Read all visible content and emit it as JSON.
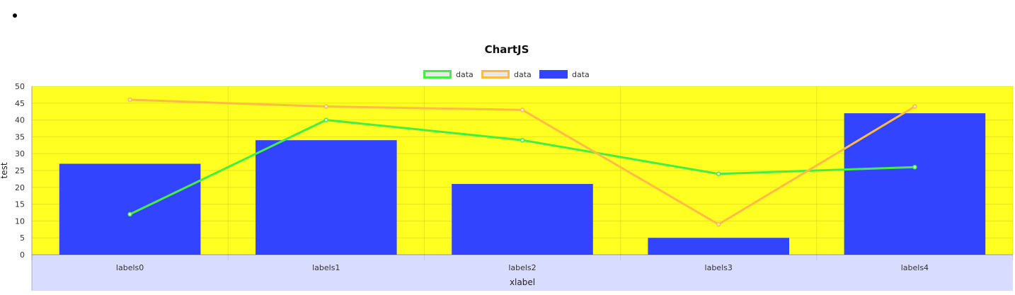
{
  "page": {
    "bullet": "•"
  },
  "chart_data": {
    "type": "bar",
    "title": "ChartJS",
    "categories": [
      "labels0",
      "labels1",
      "labels2",
      "labels3",
      "labels4"
    ],
    "xlabel": "xlabel",
    "ylabel": "test",
    "ylim": [
      0,
      50
    ],
    "yticks": [
      0,
      5,
      10,
      15,
      20,
      25,
      30,
      35,
      40,
      45,
      50
    ],
    "grid": true,
    "legend_position": "top",
    "plot_background": "#ffff22",
    "x_axis_background": "#d8dcff",
    "series": [
      {
        "name": "data",
        "type": "line",
        "values": [
          12,
          40,
          34,
          24,
          26
        ],
        "color": "#44ee44"
      },
      {
        "name": "data",
        "type": "line",
        "values": [
          46,
          44,
          43,
          9,
          44
        ],
        "color": "#ffbb44"
      },
      {
        "name": "data",
        "type": "bar",
        "values": [
          27,
          34,
          21,
          5,
          42
        ],
        "color": "#3344ff"
      }
    ]
  }
}
